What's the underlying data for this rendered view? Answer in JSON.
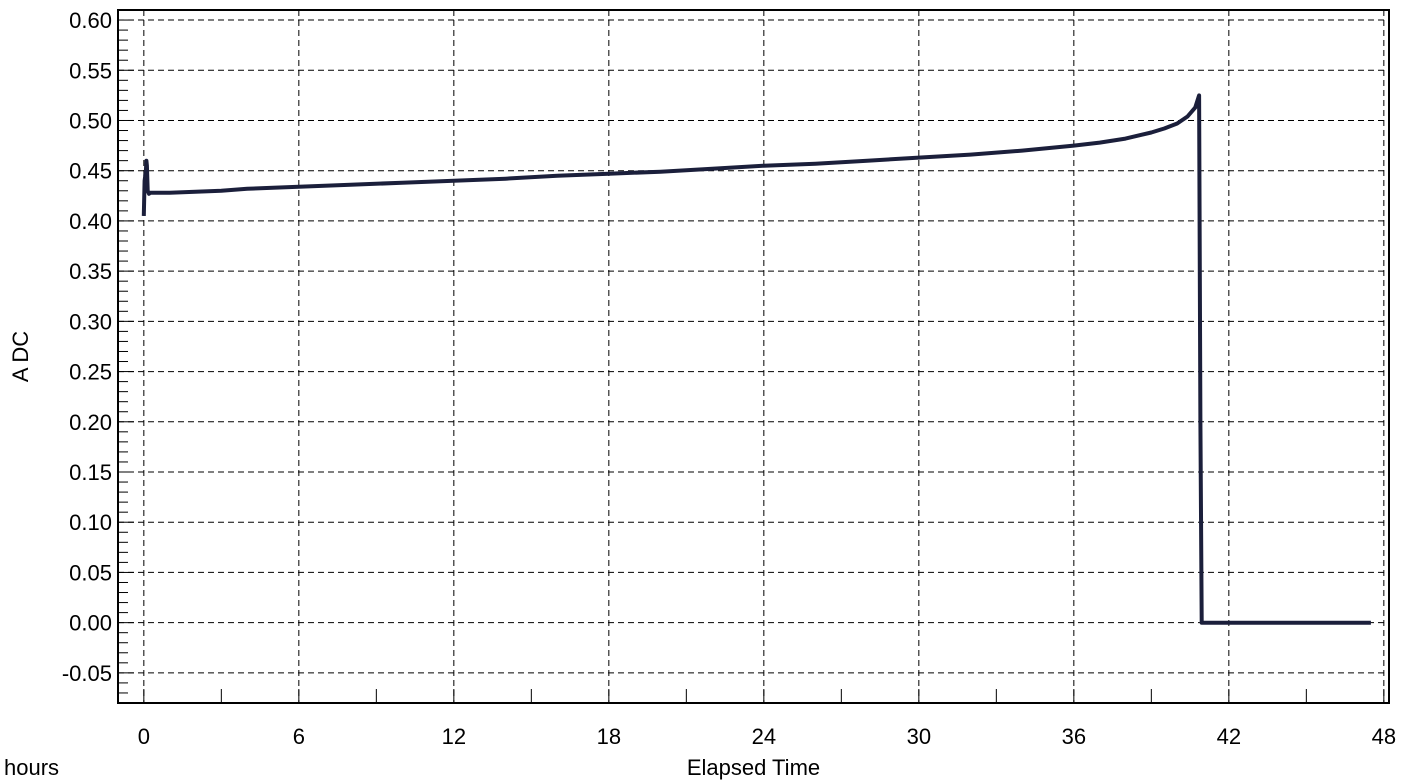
{
  "chart_data": {
    "type": "line",
    "title": "",
    "xlabel": "Elapsed Time",
    "xunit": "hours",
    "ylabel": "A DC",
    "xlim": [
      -1,
      48.2
    ],
    "ylim": [
      -0.08,
      0.61
    ],
    "xticks": [
      0,
      6,
      12,
      18,
      24,
      30,
      36,
      42,
      48
    ],
    "xtick_labels": [
      "0",
      "6",
      "12",
      "18",
      "24",
      "30",
      "36",
      "42",
      "48"
    ],
    "yticks": [
      0.6,
      0.55,
      0.5,
      0.45,
      0.4,
      0.35,
      0.3,
      0.25,
      0.2,
      0.15,
      0.1,
      0.05,
      0.0,
      -0.05
    ],
    "ytick_labels": [
      "0.60",
      "0.55",
      "0.50",
      "0.45",
      "0.40",
      "0.35",
      "0.30",
      "0.25",
      "0.20",
      "0.15",
      "0.10",
      "0.05",
      "0.00",
      "-0.05"
    ],
    "grid": true,
    "series": [
      {
        "color": "#1b1f3b",
        "x": [
          0.0,
          0.03,
          0.08,
          0.1,
          0.12,
          0.15,
          0.2,
          0.25,
          0.3,
          1,
          2,
          3,
          4,
          5,
          6,
          8,
          10,
          12,
          14,
          16,
          18,
          20,
          22,
          24,
          26,
          28,
          30,
          32,
          34,
          36,
          37,
          38,
          39,
          39.5,
          40,
          40.4,
          40.7,
          40.85,
          40.9,
          40.95,
          41.0,
          42,
          44,
          46,
          47.5
        ],
        "y": [
          0.405,
          0.44,
          0.45,
          0.46,
          0.455,
          0.43,
          0.427,
          0.428,
          0.428,
          0.428,
          0.429,
          0.43,
          0.432,
          0.433,
          0.434,
          0.436,
          0.438,
          0.44,
          0.442,
          0.445,
          0.447,
          0.449,
          0.452,
          0.455,
          0.457,
          0.46,
          0.463,
          0.466,
          0.47,
          0.475,
          0.478,
          0.482,
          0.488,
          0.492,
          0.497,
          0.504,
          0.513,
          0.525,
          0.2,
          0.0,
          0.0,
          0.0,
          0.0,
          0.0,
          0.0
        ]
      }
    ]
  }
}
